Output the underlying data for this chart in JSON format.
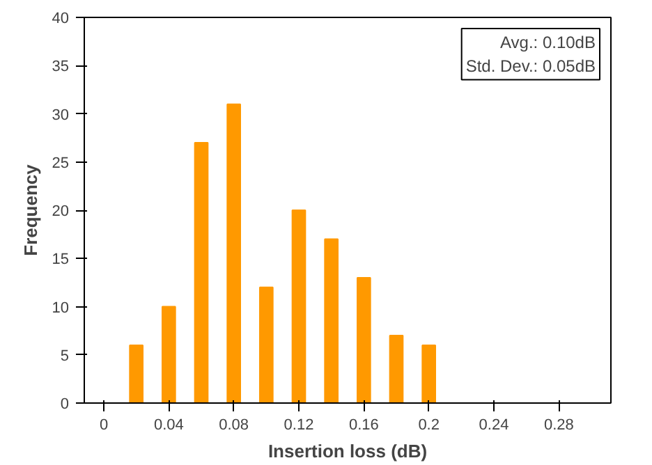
{
  "chart_data": {
    "type": "bar",
    "xlabel": "Insertion loss (dB)",
    "ylabel": "Frequency",
    "x": [
      0,
      0.02,
      0.04,
      0.06,
      0.08,
      0.1,
      0.12,
      0.14,
      0.16,
      0.18,
      0.2,
      0.22,
      0.24,
      0.26,
      0.28,
      0.3
    ],
    "values": [
      0,
      6,
      10,
      27,
      31,
      12,
      20,
      17,
      13,
      7,
      6,
      0,
      0,
      0,
      0,
      0
    ],
    "color": "#ff9900",
    "xlim": [
      -0.012,
      0.312
    ],
    "xticks": [
      0,
      0.04,
      0.08,
      0.12,
      0.16,
      {
        "value": 0.2,
        "label": "0.2"
      },
      0.24,
      0.28
    ],
    "ylim": [
      0,
      40
    ],
    "yticks": [
      0,
      5,
      10,
      15,
      20,
      25,
      30,
      35,
      40
    ],
    "grid": false,
    "annotations": [
      "Avg.: 0.10dB",
      "Std. Dev.: 0.05dB"
    ]
  }
}
